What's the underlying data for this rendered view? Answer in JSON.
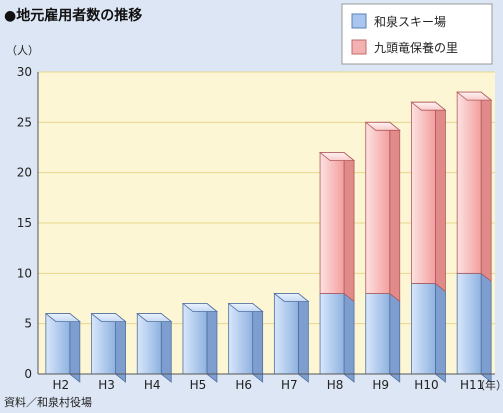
{
  "chart_data": {
    "type": "bar",
    "stacked": true,
    "title": "●地元雇用者数の推移",
    "ylabel": "（人）",
    "xlabel": "（年）",
    "source": "資料／和泉村役場",
    "categories": [
      "H2",
      "H3",
      "H4",
      "H5",
      "H6",
      "H7",
      "H8",
      "H9",
      "H10",
      "H11"
    ],
    "ylim": [
      0,
      30
    ],
    "yticks": [
      0,
      5,
      10,
      15,
      20,
      25,
      30
    ],
    "grid": true,
    "legend_position": "top-right",
    "series": [
      {
        "name": "和泉スキー場",
        "values": [
          6,
          6,
          6,
          7,
          7,
          8,
          8,
          8,
          9,
          10
        ],
        "color": "#a9c7ee"
      },
      {
        "name": "九頭竜保養の里",
        "values": [
          0,
          0,
          0,
          0,
          0,
          0,
          14,
          17,
          18,
          18
        ],
        "color": "#f4b1b1"
      }
    ],
    "colors": {
      "background": "#dde6f4",
      "plot_area": "#fdf6d5",
      "grid": "#e8d68d"
    }
  }
}
